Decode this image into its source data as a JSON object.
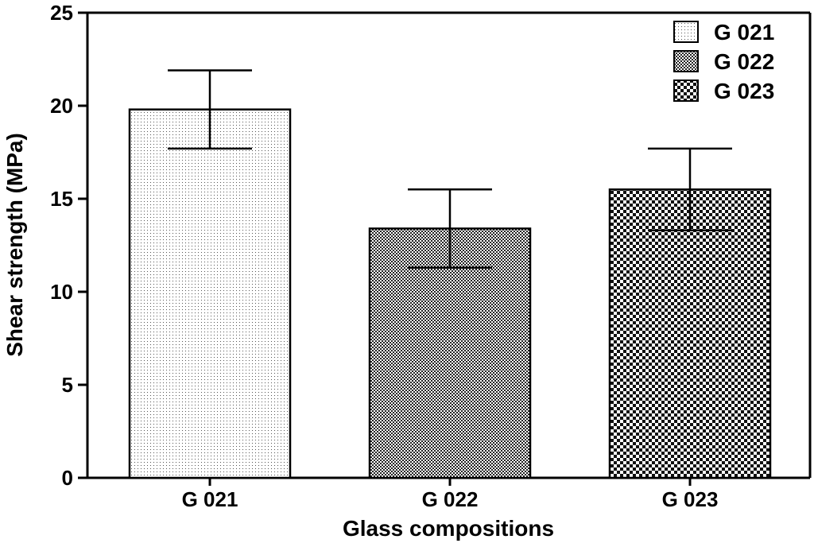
{
  "chart_data": {
    "type": "bar",
    "title": "",
    "xlabel": "Glass compositions",
    "ylabel": "Shear strength (MPa)",
    "ylim": [
      0,
      25
    ],
    "yticks": [
      0,
      5,
      10,
      15,
      20,
      25
    ],
    "categories": [
      "G 021",
      "G 022",
      "G 023"
    ],
    "values": [
      19.8,
      13.4,
      15.5
    ],
    "errors": [
      2.1,
      2.1,
      2.2
    ],
    "legend": {
      "position": "top-right",
      "entries": [
        "G 021",
        "G 022",
        "G 023"
      ]
    },
    "grid": false
  }
}
